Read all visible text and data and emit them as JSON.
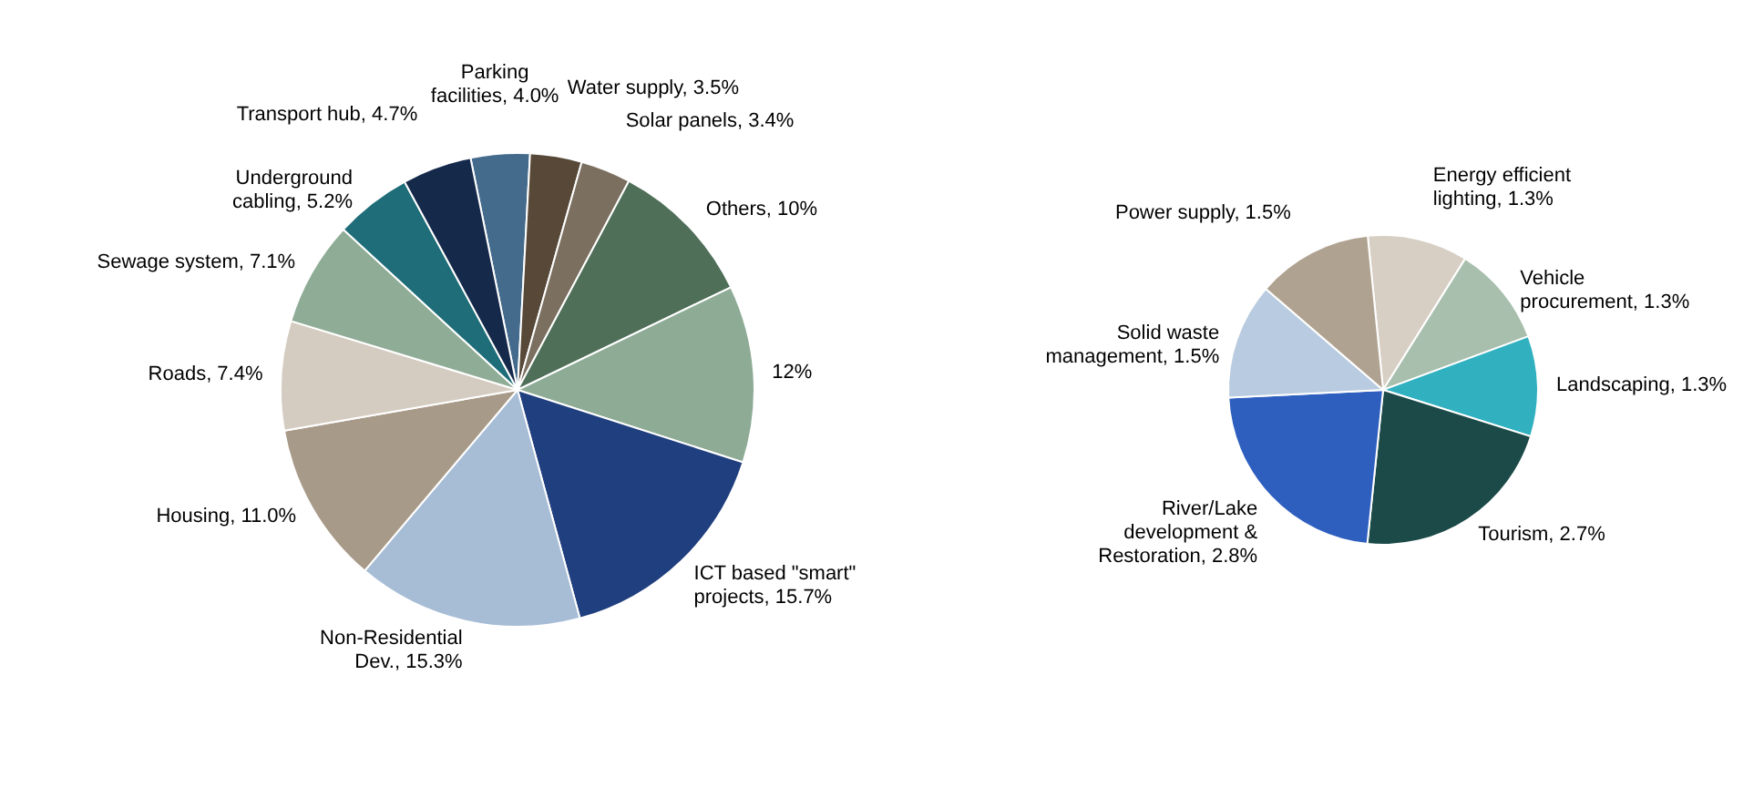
{
  "chart_data": [
    {
      "type": "pie",
      "categories": [
        "Parking facilities",
        "Water supply",
        "Solar panels",
        "Others",
        null,
        "ICT based \"smart\" projects",
        "Non-Residential Dev.",
        "Housing",
        "Roads",
        "Sewage system",
        "Underground cabling",
        "Transport hub"
      ],
      "values": [
        4.0,
        3.5,
        3.4,
        10,
        12,
        15.7,
        15.3,
        11.0,
        7.4,
        7.1,
        5.2,
        4.7
      ],
      "value_labels": [
        "4.0%",
        "3.5%",
        "3.4%",
        "10%",
        "12%",
        "15.7%",
        "15.3%",
        "11.0%",
        "7.4%",
        "7.1%",
        "5.2%",
        "4.7%"
      ],
      "colors": [
        "#456b8c",
        "#574838",
        "#7b6f5f",
        "#4f6f58",
        "#8eab96",
        "#203f7e",
        "#a7bdd6",
        "#a89a88",
        "#d5ccc1",
        "#8fac96",
        "#1e6d78",
        "#15294a"
      ]
    },
    {
      "type": "pie",
      "categories": [
        "Energy efficient lighting",
        "Vehicle procurement",
        "Landscaping",
        "Tourism",
        "River/Lake development & Restoration",
        "Solid waste management",
        "Power supply"
      ],
      "values": [
        1.3,
        1.3,
        1.3,
        2.7,
        2.8,
        1.5,
        1.5
      ],
      "value_labels": [
        "1.3%",
        "1.3%",
        "1.3%",
        "2.7%",
        "2.8%",
        "1.5%",
        "1.5%"
      ],
      "colors": [
        "#d8cfc4",
        "#a8bfae",
        "#31b0c0",
        "#1b4a48",
        "#2e5fbf",
        "#b8cbe0",
        "#b0a290"
      ]
    }
  ]
}
